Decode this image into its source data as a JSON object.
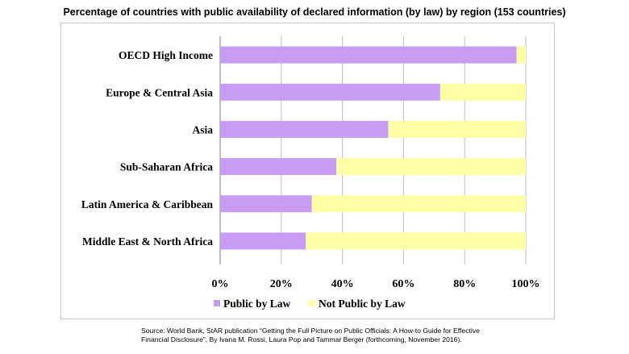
{
  "title": "Percentage of countries with public availability of declared information (by law) by region (153 countries)",
  "source_line1": "Source: World Bank, StAR publication “Getting the Full Picture on Public Officials: A How-to Guide for Effective",
  "source_line2": "Financial Disclosure”, By Ivana M. Rossi, Laura Pop and Tammar Berger (forthcoming, November 2016).",
  "chart_data": {
    "type": "bar",
    "orientation": "horizontal",
    "stacked": true,
    "categories": [
      "OECD High Income",
      "Europe & Central Asia",
      "Asia",
      "Sub-Saharan Africa",
      "Latin America & Caribbean",
      "Middle East & North Africa"
    ],
    "series": [
      {
        "name": "Public by Law",
        "values": [
          97,
          72,
          55,
          38,
          30,
          28
        ],
        "color": "#c89cf2"
      },
      {
        "name": "Not Public by Law",
        "values": [
          3,
          28,
          45,
          62,
          70,
          72
        ],
        "color": "#ffffa6"
      }
    ],
    "xlim": [
      0,
      100
    ],
    "xticks": [
      "0%",
      "20%",
      "40%",
      "60%",
      "80%",
      "100%"
    ],
    "grid": true,
    "legend_position": "bottom"
  }
}
